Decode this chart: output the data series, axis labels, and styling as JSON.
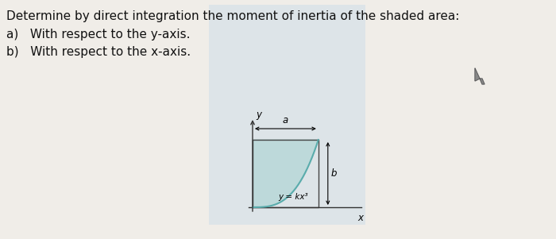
{
  "title_line": "Determine by direct integration the moment of inertia of the shaded area:",
  "item_a": "a)   With respect to the y-axis.",
  "item_b": "b)   With respect to the x-axis.",
  "bg_color": "#f0ede8",
  "shaded_color": "#b8d8d8",
  "shaded_alpha": 0.85,
  "curve_color": "#5aacac",
  "rect_edge_color": "#444444",
  "axis_color": "#333333",
  "text_color": "#111111",
  "diagram_bg": "#dde4e8",
  "curve_label": "y = kx³",
  "x_label": "x",
  "y_label": "y",
  "a_label": "a",
  "b_label": "b",
  "font_size_title": 11,
  "font_size_items": 11,
  "font_size_diag": 8.5,
  "a_val": 0.72,
  "b_val": 0.72
}
